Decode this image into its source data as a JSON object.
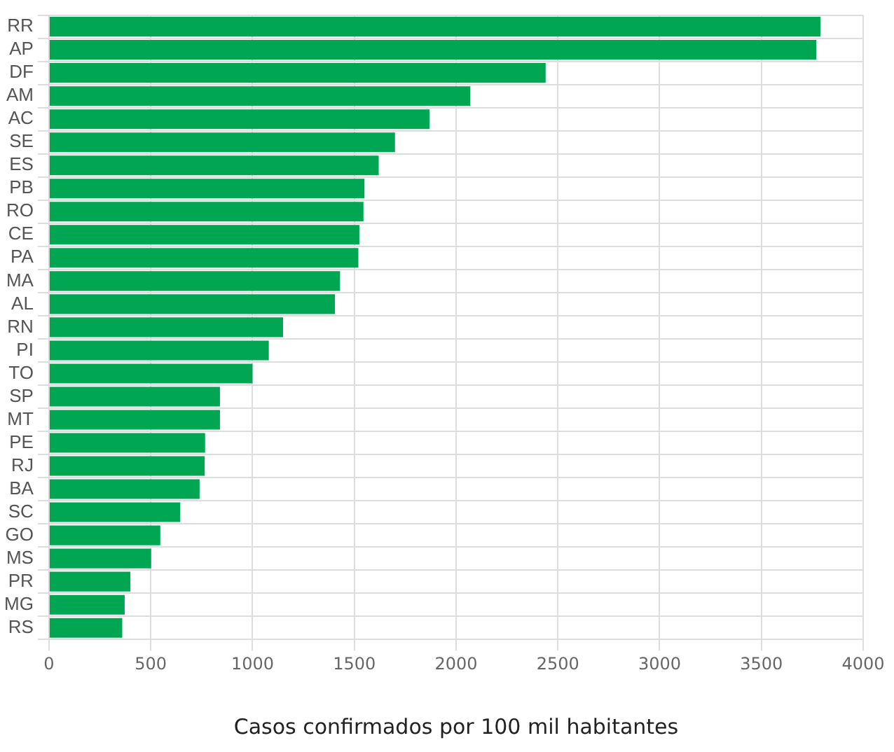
{
  "chart_data": {
    "type": "bar",
    "orientation": "horizontal",
    "xlabel": "Casos confirmados por 100 mil habitantes",
    "categories": [
      "RR",
      "AP",
      "DF",
      "AM",
      "AC",
      "SE",
      "ES",
      "PB",
      "RO",
      "CE",
      "PA",
      "MA",
      "AL",
      "RN",
      "PI",
      "TO",
      "SP",
      "MT",
      "PE",
      "RJ",
      "BA",
      "SC",
      "GO",
      "MS",
      "PR",
      "MG",
      "RS"
    ],
    "values": [
      3790,
      3770,
      2440,
      2070,
      1870,
      1700,
      1620,
      1550,
      1545,
      1525,
      1520,
      1430,
      1405,
      1150,
      1080,
      1000,
      840,
      840,
      767,
      765,
      740,
      645,
      547,
      502,
      400,
      372,
      360
    ],
    "color": "#00a651",
    "xlim": [
      0,
      4000
    ],
    "xticks": [
      0,
      500,
      1000,
      1500,
      2000,
      2500,
      3000,
      3500,
      4000
    ],
    "grid": true,
    "legend": false
  }
}
